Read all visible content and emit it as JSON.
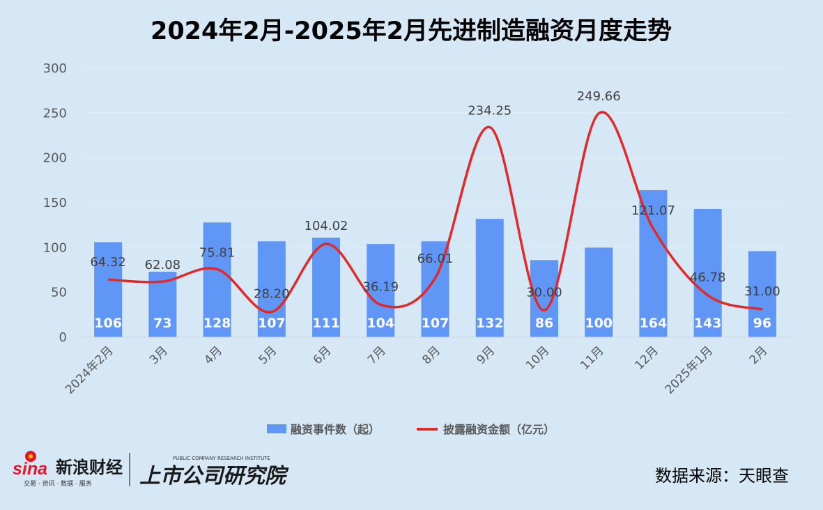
{
  "chart_data": {
    "type": "bar",
    "title": "2024年2月-2025年2月先进制造融资月度走势",
    "categories": [
      "2024年2月",
      "3月",
      "4月",
      "5月",
      "6月",
      "7月",
      "8月",
      "9月",
      "10月",
      "11月",
      "12月",
      "2025年1月",
      "2月"
    ],
    "series": [
      {
        "name": "融资事件数（起）",
        "type": "bar",
        "color": "#6096f5",
        "values": [
          106,
          73,
          128,
          107,
          111,
          104,
          107,
          132,
          86,
          100,
          164,
          143,
          96
        ],
        "labels": [
          "106",
          "73",
          "128",
          "107",
          "111",
          "104",
          "107",
          "132",
          "86",
          "100",
          "164",
          "143",
          "96"
        ]
      },
      {
        "name": "披露融资金额（亿元）",
        "type": "line",
        "smooth": true,
        "color": "#e02a2a",
        "values": [
          64.32,
          62.08,
          75.81,
          28.2,
          104.02,
          36.19,
          66.01,
          234.25,
          30.0,
          249.66,
          121.07,
          46.78,
          31.0
        ],
        "labels": [
          "64.32",
          "62.08",
          "75.81",
          "28.20",
          "104.02",
          "36.19",
          "66.01",
          "234.25",
          "30.00",
          "249.66",
          "121.07",
          "46.78",
          "31.00"
        ]
      }
    ],
    "yticks": [
      "0",
      "50",
      "100",
      "150",
      "200",
      "250",
      "300"
    ],
    "ylim": [
      0,
      300
    ],
    "grid": true,
    "legend_position": "bottom"
  },
  "footer": {
    "brand_sina": "sina",
    "brand_cn": "新浪财经",
    "brand_sub": "交易 · 资讯 · 数据 · 服务",
    "institute": "上市公司研究院",
    "institute_en": "PUBLIC COMPANY RESEARCH INSTITUTE",
    "source": "数据来源：天眼查"
  },
  "colors": {
    "background": "#d6e7f5",
    "bar": "#6096f5",
    "line": "#e02a2a",
    "grid": "#e3eaf1"
  }
}
